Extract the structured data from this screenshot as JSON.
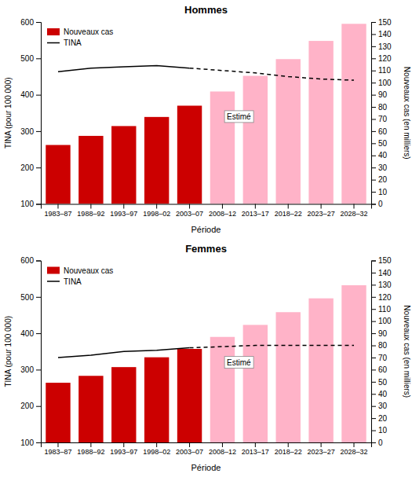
{
  "chart_data": [
    {
      "type": "bar",
      "title": "Hommes",
      "categories": [
        "1983–87",
        "1988–92",
        "1993–97",
        "1998–02",
        "2003–07",
        "2008–12",
        "2013–17",
        "2018–22",
        "2023–27",
        "2028–32"
      ],
      "xlabel": "Période",
      "ylabel": "TINA (pour 100 000)",
      "y2label": "Nouveaux cas (en milliers)",
      "ylim": [
        100,
        600
      ],
      "yticks": [
        100,
        200,
        300,
        400,
        500,
        600
      ],
      "y2lim": [
        0,
        150
      ],
      "y2ticks": [
        0,
        10,
        20,
        30,
        40,
        50,
        60,
        70,
        80,
        90,
        100,
        110,
        120,
        130,
        140,
        150
      ],
      "legend": "upper left",
      "series": [
        {
          "name": "Nouveaux cas",
          "type": "bar",
          "color": "#cc0000",
          "colors": [
            "#cc0000",
            "#cc0000",
            "#cc0000",
            "#cc0000",
            "#cc0000",
            "#ffb3c8",
            "#ffb3c8",
            "#ffb3c8",
            "#ffb3c8",
            "#ffb3c8"
          ],
          "values": [
            262,
            287,
            314,
            339,
            370,
            409,
            452,
            498,
            548,
            595
          ]
        },
        {
          "name": "TINA",
          "type": "line",
          "axis": "y2",
          "color": "#000000",
          "line_style": "solid",
          "estimated_from": 4,
          "values": [
            109,
            112,
            113,
            114,
            112,
            110,
            108,
            105,
            103,
            102
          ]
        }
      ],
      "annotations": [
        {
          "text": "Estimé",
          "x": 5.5,
          "y": 340
        }
      ]
    },
    {
      "type": "bar",
      "title": "Femmes",
      "categories": [
        "1983–87",
        "1988–92",
        "1993–97",
        "1998–02",
        "2003–07",
        "2008–12",
        "2013–17",
        "2018–22",
        "2023–27",
        "2028–32"
      ],
      "xlabel": "Période",
      "ylabel": "TINA (pour 100 000)",
      "y2label": "Nouveaux cas (en milliers)",
      "ylim": [
        100,
        600
      ],
      "yticks": [
        100,
        200,
        300,
        400,
        500,
        600
      ],
      "y2lim": [
        0,
        150
      ],
      "y2ticks": [
        0,
        10,
        20,
        30,
        40,
        50,
        60,
        70,
        80,
        90,
        100,
        110,
        120,
        130,
        140,
        150
      ],
      "legend": "upper left",
      "series": [
        {
          "name": "Nouveaux cas",
          "type": "bar",
          "color": "#cc0000",
          "colors": [
            "#cc0000",
            "#cc0000",
            "#cc0000",
            "#cc0000",
            "#cc0000",
            "#ffb3c8",
            "#ffb3c8",
            "#ffb3c8",
            "#ffb3c8",
            "#ffb3c8"
          ],
          "values": [
            264,
            283,
            307,
            334,
            357,
            390,
            423,
            458,
            496,
            532
          ]
        },
        {
          "name": "TINA",
          "type": "line",
          "axis": "y2",
          "color": "#000000",
          "line_style": "solid",
          "estimated_from": 4,
          "values": [
            70,
            72,
            75,
            76,
            78,
            79,
            80,
            80,
            80,
            80
          ]
        }
      ],
      "annotations": [
        {
          "text": "Estimé",
          "x": 5.5,
          "y": 320
        }
      ]
    }
  ]
}
